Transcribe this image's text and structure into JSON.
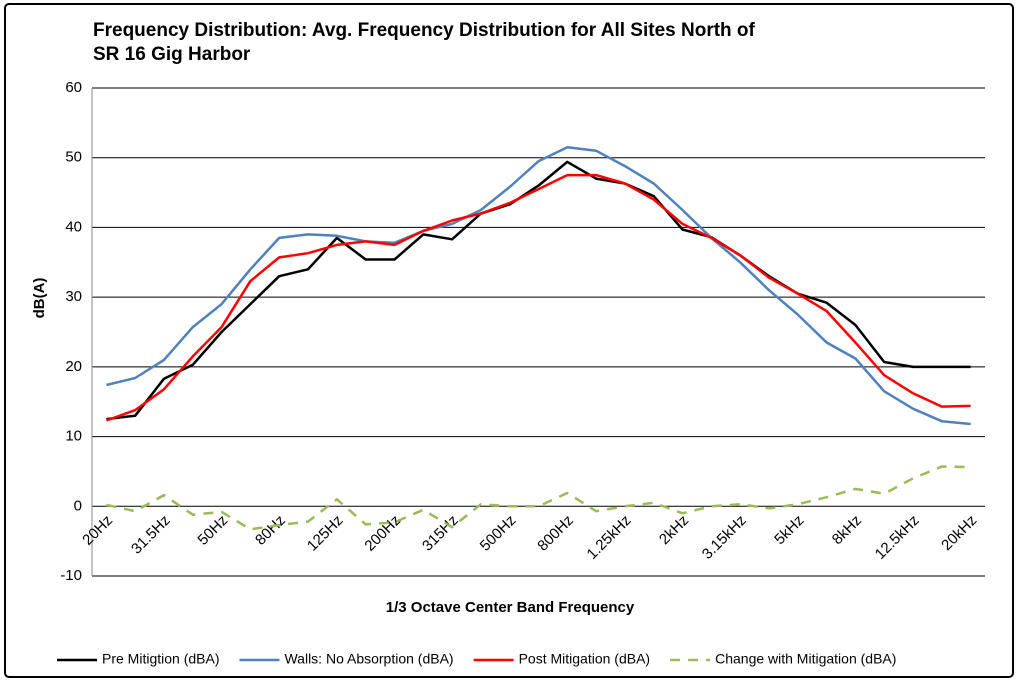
{
  "chart_data": {
    "type": "line",
    "title": [
      "Frequency Distribution: Avg. Frequency Distribution for All Sites North of",
      "SR 16 Gig Harbor"
    ],
    "x_label": "1/3 Octave Center Band Frequency",
    "y_label": "dB(A)",
    "categories": [
      "20Hz",
      null,
      "31.5Hz",
      null,
      "50Hz",
      null,
      "80Hz",
      null,
      "125Hz",
      null,
      "200Hz",
      null,
      "315Hz",
      null,
      "500Hz",
      null,
      "800Hz",
      null,
      "1.25kHz",
      null,
      "2kHz",
      null,
      "3.15kHz",
      null,
      "5kHz",
      null,
      "8kHz",
      null,
      "12.5kHz",
      null,
      "20kHz"
    ],
    "ylim": [
      -10,
      60
    ],
    "yticks": [
      -10,
      0,
      10,
      20,
      30,
      40,
      50,
      60
    ],
    "grid": true,
    "legend": "bottom",
    "series": [
      {
        "name": "Pre Mitigtion (dBA)",
        "color": "#000000",
        "dashed": false,
        "values": [
          12.5,
          13,
          18.3,
          20.3,
          25,
          29,
          33,
          34,
          38.5,
          35.4,
          35.4,
          39,
          38.3,
          42,
          43.3,
          46,
          49.4,
          47,
          46.3,
          44.5,
          39.7,
          38.6,
          36,
          33,
          30.5,
          29.2,
          26,
          20.7,
          20,
          20,
          20
        ]
      },
      {
        "name": "Walls: No Absorption (dBA)",
        "color": "#4f81bd",
        "dashed": false,
        "values": [
          17.4,
          18.4,
          21,
          25.7,
          29,
          34,
          38.5,
          39,
          38.8,
          38,
          37.8,
          39.5,
          40.5,
          42.5,
          45.8,
          49.5,
          51.5,
          51,
          48.8,
          46.3,
          42.5,
          38.5,
          35,
          31,
          27.5,
          23.5,
          21.2,
          16.5,
          14,
          12.2,
          11.8
        ]
      },
      {
        "name": "Post Mitigation (dBA)",
        "color": "#ff0000",
        "dashed": false,
        "values": [
          12.3,
          13.8,
          16.8,
          21.5,
          25.7,
          32.3,
          35.7,
          36.3,
          37.5,
          38,
          37.5,
          39.5,
          41,
          42,
          43.5,
          45.5,
          47.5,
          47.5,
          46.3,
          44,
          40.5,
          38.5,
          36,
          32.8,
          30.5,
          28,
          23.5,
          18.8,
          16.2,
          14.3,
          14.4
        ]
      },
      {
        "name": "Change with Mitigation (dBA)",
        "color": "#9bbb59",
        "dashed": true,
        "values": [
          0.2,
          -0.7,
          1.6,
          -1.2,
          -0.8,
          -3.3,
          -2.7,
          -2.2,
          1,
          -2.6,
          -2.3,
          -0.5,
          -3,
          0.3,
          0,
          0,
          1.9,
          -0.7,
          0,
          0.5,
          -1,
          0,
          0.3,
          -0.3,
          0.3,
          1.3,
          2.5,
          1.8,
          4,
          5.7,
          5.6
        ]
      }
    ]
  }
}
